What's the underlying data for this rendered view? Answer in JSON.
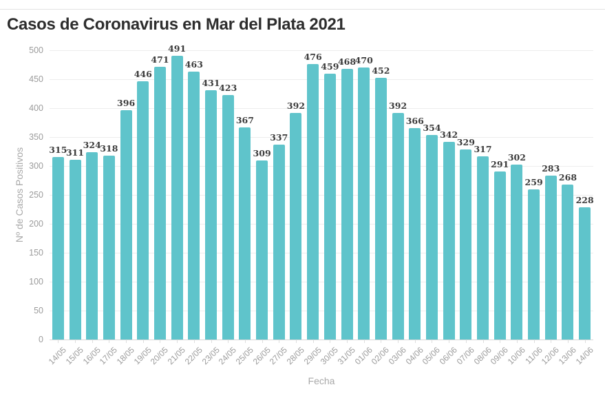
{
  "page": {
    "title": "Casos de Coronavirus en Mar del Plata 2021"
  },
  "chart_data": {
    "type": "bar",
    "title": "Casos de Coronavirus en Mar del Plata 2021",
    "xlabel": "Fecha",
    "ylabel": "Nº de Casos Positivos",
    "ylim": [
      0,
      500
    ],
    "yticks": [
      0,
      50,
      100,
      150,
      200,
      250,
      300,
      350,
      400,
      450,
      500
    ],
    "grid": "horizontal-only",
    "legend": "none",
    "bar_color": "#5fc4cb",
    "value_labels_shown": true,
    "categories": [
      "14/05",
      "15/05",
      "16/05",
      "17/05",
      "18/05",
      "19/05",
      "20/05",
      "21/05",
      "22/05",
      "23/05",
      "24/05",
      "25/05",
      "26/05",
      "27/05",
      "28/05",
      "29/05",
      "30/05",
      "31/05",
      "01/06",
      "02/06",
      "03/06",
      "04/06",
      "05/06",
      "06/06",
      "07/06",
      "08/06",
      "09/06",
      "10/06",
      "11/06",
      "12/06",
      "13/06",
      "14/06"
    ],
    "values": [
      315,
      311,
      324,
      318,
      396,
      446,
      471,
      491,
      463,
      431,
      423,
      367,
      309,
      337,
      392,
      476,
      459,
      468,
      470,
      452,
      392,
      366,
      354,
      342,
      329,
      317,
      291,
      302,
      259,
      283,
      268,
      228
    ]
  },
  "colors": {
    "bar": "#5fc4cb",
    "title_text": "#2d2d2d",
    "value_label_text": "#3b3b3b",
    "axis_tick_text": "#9b9b9b",
    "axis_title_text": "#a9a9a9",
    "gridline": "#ededed",
    "zero_line": "#d7d7d7",
    "top_divider": "#e3e3e3",
    "background": "#ffffff"
  }
}
